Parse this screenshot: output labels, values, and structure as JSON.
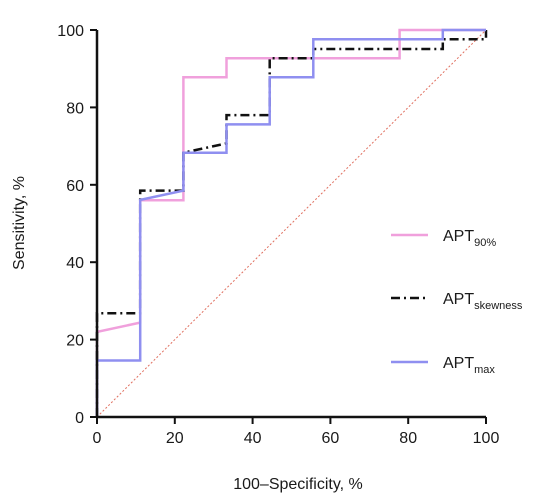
{
  "chart_data": {
    "type": "line",
    "title": "",
    "xlabel": "100–Specificity, %",
    "ylabel": "Sensitivity, %",
    "xlim": [
      0,
      100
    ],
    "ylim": [
      0,
      100
    ],
    "x_ticks": [
      "0",
      "20",
      "40",
      "60",
      "80",
      "100"
    ],
    "y_ticks": [
      "0",
      "20",
      "40",
      "60",
      "80",
      "100"
    ],
    "grid": false,
    "legend_position": "right",
    "series": [
      {
        "name_base": "APT",
        "name_sub": "90%",
        "color": "#f0a0dc",
        "style": "solid",
        "points": [
          [
            0,
            0
          ],
          [
            0,
            22
          ],
          [
            11.1,
            24.4
          ],
          [
            11.1,
            56
          ],
          [
            22.2,
            56
          ],
          [
            22.2,
            87.8
          ],
          [
            33.3,
            87.8
          ],
          [
            33.3,
            92.7
          ],
          [
            77.8,
            92.7
          ],
          [
            77.8,
            100
          ],
          [
            100,
            100
          ]
        ]
      },
      {
        "name_base": "APT",
        "name_sub": "skewness",
        "color": "#111111",
        "style": "dashdot",
        "points": [
          [
            0,
            0
          ],
          [
            0,
            26.8
          ],
          [
            11.1,
            26.8
          ],
          [
            11.1,
            58.5
          ],
          [
            22.2,
            58.5
          ],
          [
            22.2,
            68.3
          ],
          [
            33.3,
            70.7
          ],
          [
            33.3,
            78
          ],
          [
            44.4,
            78
          ],
          [
            44.4,
            92.7
          ],
          [
            55.6,
            92.7
          ],
          [
            55.6,
            95.1
          ],
          [
            88.9,
            95.1
          ],
          [
            88.9,
            97.6
          ],
          [
            100,
            97.6
          ],
          [
            100,
            100
          ]
        ]
      },
      {
        "name_base": "APT",
        "name_sub": "max",
        "color": "#8f8ff0",
        "style": "solid",
        "points": [
          [
            0,
            0
          ],
          [
            0,
            14.6
          ],
          [
            11.1,
            14.6
          ],
          [
            11.1,
            56.1
          ],
          [
            22.2,
            58.5
          ],
          [
            22.2,
            68.3
          ],
          [
            33.3,
            68.3
          ],
          [
            33.3,
            75.6
          ],
          [
            44.4,
            75.6
          ],
          [
            44.4,
            87.8
          ],
          [
            55.6,
            87.8
          ],
          [
            55.6,
            97.6
          ],
          [
            88.9,
            97.6
          ],
          [
            88.9,
            100
          ],
          [
            100,
            100
          ]
        ]
      }
    ],
    "reference_line": {
      "points": [
        [
          0,
          0
        ],
        [
          100,
          100
        ]
      ],
      "color": "#e07060",
      "style": "dotted"
    }
  }
}
